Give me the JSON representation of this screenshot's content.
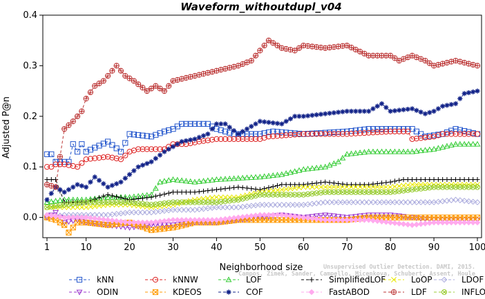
{
  "chart_data": {
    "type": "line",
    "title": "Waveform_withoutdupl_v04",
    "xlabel": "Neighborhood size",
    "ylabel": "Adjusted P@n",
    "xlim": [
      1,
      100
    ],
    "ylim": [
      -0.04,
      0.4
    ],
    "x_ticks": [
      "1",
      "10",
      "20",
      "30",
      "40",
      "50",
      "60",
      "70",
      "80",
      "90",
      "100"
    ],
    "y_ticks": [
      "0.0",
      "0.1",
      "0.2",
      "0.3",
      "0.4"
    ],
    "grid": false,
    "legend_position": "bottom",
    "credit": "Campos, Zimek, Sander, Campello, Micenkova, Schubert, Assent, Houle",
    "credit_line1": "Unsupervised Outlier Detection. DAMI, 2015.",
    "series": [
      {
        "name": "kNN",
        "color": "#2255cc",
        "marker": "square",
        "points": [
          [
            1,
            0.125
          ],
          [
            2,
            0.125
          ],
          [
            3,
            0.11
          ],
          [
            4,
            0.11
          ],
          [
            5,
            0.11
          ],
          [
            6,
            0.11
          ],
          [
            7,
            0.145
          ],
          [
            8,
            0.13
          ],
          [
            9,
            0.145
          ],
          [
            10,
            0.13
          ],
          [
            15,
            0.15
          ],
          [
            18,
            0.13
          ],
          [
            20,
            0.165
          ],
          [
            25,
            0.16
          ],
          [
            28,
            0.17
          ],
          [
            30,
            0.175
          ],
          [
            32,
            0.185
          ],
          [
            38,
            0.185
          ],
          [
            40,
            0.175
          ],
          [
            44,
            0.165
          ],
          [
            50,
            0.165
          ],
          [
            53,
            0.17
          ],
          [
            60,
            0.165
          ],
          [
            70,
            0.17
          ],
          [
            75,
            0.175
          ],
          [
            80,
            0.175
          ],
          [
            85,
            0.175
          ],
          [
            88,
            0.16
          ],
          [
            92,
            0.165
          ],
          [
            95,
            0.175
          ],
          [
            100,
            0.165
          ]
        ]
      },
      {
        "name": "kNNW",
        "color": "#dd2222",
        "marker": "circle",
        "points": [
          [
            1,
            0.1
          ],
          [
            2,
            0.1
          ],
          [
            3,
            0.105
          ],
          [
            5,
            0.105
          ],
          [
            8,
            0.1
          ],
          [
            10,
            0.115
          ],
          [
            15,
            0.12
          ],
          [
            18,
            0.115
          ],
          [
            20,
            0.13
          ],
          [
            22,
            0.135
          ],
          [
            28,
            0.135
          ],
          [
            30,
            0.145
          ],
          [
            33,
            0.145
          ],
          [
            36,
            0.15
          ],
          [
            40,
            0.155
          ],
          [
            50,
            0.155
          ],
          [
            52,
            0.16
          ],
          [
            60,
            0.165
          ],
          [
            70,
            0.165
          ],
          [
            80,
            0.17
          ],
          [
            84,
            0.17
          ],
          [
            85,
            0.155
          ],
          [
            90,
            0.16
          ],
          [
            92,
            0.165
          ],
          [
            100,
            0.165
          ]
        ]
      },
      {
        "name": "LOF",
        "color": "#33cc33",
        "marker": "triangle-up",
        "points": [
          [
            1,
            0.03
          ],
          [
            5,
            0.035
          ],
          [
            10,
            0.035
          ],
          [
            15,
            0.04
          ],
          [
            20,
            0.04
          ],
          [
            25,
            0.045
          ],
          [
            27,
            0.07
          ],
          [
            30,
            0.075
          ],
          [
            35,
            0.07
          ],
          [
            40,
            0.075
          ],
          [
            50,
            0.08
          ],
          [
            55,
            0.085
          ],
          [
            60,
            0.095
          ],
          [
            65,
            0.1
          ],
          [
            68,
            0.11
          ],
          [
            70,
            0.125
          ],
          [
            75,
            0.13
          ],
          [
            80,
            0.13
          ],
          [
            85,
            0.13
          ],
          [
            90,
            0.135
          ],
          [
            95,
            0.145
          ],
          [
            100,
            0.145
          ]
        ]
      },
      {
        "name": "SimplifiedLOF",
        "color": "#000000",
        "marker": "plus",
        "points": [
          [
            1,
            0.075
          ],
          [
            3,
            0.075
          ],
          [
            5,
            0.03
          ],
          [
            10,
            0.03
          ],
          [
            15,
            0.045
          ],
          [
            20,
            0.035
          ],
          [
            25,
            0.04
          ],
          [
            30,
            0.05
          ],
          [
            35,
            0.05
          ],
          [
            40,
            0.055
          ],
          [
            45,
            0.06
          ],
          [
            50,
            0.055
          ],
          [
            55,
            0.065
          ],
          [
            60,
            0.065
          ],
          [
            65,
            0.07
          ],
          [
            70,
            0.065
          ],
          [
            75,
            0.065
          ],
          [
            80,
            0.07
          ],
          [
            83,
            0.075
          ],
          [
            90,
            0.075
          ],
          [
            100,
            0.075
          ]
        ]
      },
      {
        "name": "LoOP",
        "color": "#e8e800",
        "marker": "cross",
        "points": [
          [
            1,
            0.02
          ],
          [
            5,
            0.02
          ],
          [
            10,
            0.02
          ],
          [
            15,
            0.025
          ],
          [
            20,
            0.025
          ],
          [
            25,
            0.02
          ],
          [
            30,
            0.025
          ],
          [
            35,
            0.035
          ],
          [
            40,
            0.04
          ],
          [
            45,
            0.04
          ],
          [
            50,
            0.05
          ],
          [
            55,
            0.055
          ],
          [
            60,
            0.06
          ],
          [
            65,
            0.06
          ],
          [
            70,
            0.06
          ],
          [
            75,
            0.06
          ],
          [
            80,
            0.06
          ],
          [
            85,
            0.065
          ],
          [
            90,
            0.065
          ],
          [
            100,
            0.065
          ]
        ]
      },
      {
        "name": "LDOF",
        "color": "#aaaadd",
        "marker": "diamond",
        "points": [
          [
            1,
            0.0
          ],
          [
            5,
            0.005
          ],
          [
            10,
            0.005
          ],
          [
            15,
            0.005
          ],
          [
            20,
            0.01
          ],
          [
            25,
            0.01
          ],
          [
            30,
            0.015
          ],
          [
            35,
            0.015
          ],
          [
            40,
            0.02
          ],
          [
            45,
            0.02
          ],
          [
            50,
            0.025
          ],
          [
            55,
            0.025
          ],
          [
            60,
            0.025
          ],
          [
            65,
            0.03
          ],
          [
            70,
            0.03
          ],
          [
            75,
            0.03
          ],
          [
            80,
            0.03
          ],
          [
            85,
            0.03
          ],
          [
            90,
            0.03
          ],
          [
            95,
            0.035
          ],
          [
            100,
            0.03
          ]
        ]
      },
      {
        "name": "ODIN",
        "color": "#9933cc",
        "marker": "triangle-down",
        "points": [
          [
            1,
            0.0
          ],
          [
            3,
            0.01
          ],
          [
            5,
            -0.01
          ],
          [
            8,
            -0.005
          ],
          [
            10,
            -0.01
          ],
          [
            15,
            -0.015
          ],
          [
            20,
            -0.02
          ],
          [
            25,
            -0.015
          ],
          [
            30,
            -0.015
          ],
          [
            35,
            -0.01
          ],
          [
            40,
            -0.01
          ],
          [
            45,
            -0.005
          ],
          [
            50,
            0.0
          ],
          [
            55,
            0.005
          ],
          [
            60,
            0.0
          ],
          [
            65,
            0.005
          ],
          [
            70,
            0.0
          ],
          [
            75,
            0.005
          ],
          [
            80,
            0.005
          ],
          [
            85,
            0.0
          ],
          [
            90,
            -0.005
          ],
          [
            95,
            -0.005
          ],
          [
            100,
            -0.005
          ]
        ]
      },
      {
        "name": "KDEOS",
        "color": "#ff9900",
        "marker": "square-x",
        "points": [
          [
            1,
            0.0
          ],
          [
            3,
            -0.005
          ],
          [
            5,
            -0.015
          ],
          [
            6,
            -0.03
          ],
          [
            8,
            -0.01
          ],
          [
            10,
            -0.01
          ],
          [
            15,
            -0.015
          ],
          [
            20,
            -0.01
          ],
          [
            25,
            -0.025
          ],
          [
            30,
            -0.02
          ],
          [
            35,
            -0.01
          ],
          [
            40,
            -0.01
          ],
          [
            45,
            -0.005
          ],
          [
            50,
            -0.005
          ],
          [
            55,
            -0.005
          ],
          [
            60,
            -0.005
          ],
          [
            65,
            -0.005
          ],
          [
            70,
            -0.005
          ],
          [
            75,
            0.0
          ],
          [
            80,
            0.0
          ],
          [
            85,
            0.0
          ],
          [
            90,
            0.0
          ],
          [
            95,
            0.0
          ],
          [
            100,
            0.0
          ]
        ]
      },
      {
        "name": "COF",
        "color": "#112288",
        "marker": "asterisk",
        "points": [
          [
            1,
            0.035
          ],
          [
            3,
            0.06
          ],
          [
            5,
            0.05
          ],
          [
            8,
            0.065
          ],
          [
            10,
            0.06
          ],
          [
            12,
            0.08
          ],
          [
            15,
            0.06
          ],
          [
            18,
            0.07
          ],
          [
            20,
            0.085
          ],
          [
            22,
            0.1
          ],
          [
            25,
            0.11
          ],
          [
            28,
            0.13
          ],
          [
            30,
            0.14
          ],
          [
            32,
            0.15
          ],
          [
            35,
            0.155
          ],
          [
            38,
            0.165
          ],
          [
            40,
            0.185
          ],
          [
            42,
            0.185
          ],
          [
            45,
            0.165
          ],
          [
            50,
            0.19
          ],
          [
            55,
            0.185
          ],
          [
            58,
            0.2
          ],
          [
            60,
            0.2
          ],
          [
            65,
            0.205
          ],
          [
            70,
            0.21
          ],
          [
            75,
            0.21
          ],
          [
            78,
            0.225
          ],
          [
            80,
            0.21
          ],
          [
            85,
            0.215
          ],
          [
            88,
            0.205
          ],
          [
            90,
            0.21
          ],
          [
            92,
            0.22
          ],
          [
            95,
            0.225
          ],
          [
            97,
            0.245
          ],
          [
            100,
            0.25
          ]
        ]
      },
      {
        "name": "FastABOD",
        "color": "#ffaaee",
        "marker": "diamond-filled",
        "points": [
          [
            1,
            0.005
          ],
          [
            5,
            0.0
          ],
          [
            10,
            0.0
          ],
          [
            15,
            -0.005
          ],
          [
            20,
            -0.01
          ],
          [
            25,
            -0.01
          ],
          [
            30,
            -0.005
          ],
          [
            35,
            -0.005
          ],
          [
            40,
            -0.005
          ],
          [
            45,
            0.0
          ],
          [
            50,
            0.005
          ],
          [
            55,
            0.005
          ],
          [
            60,
            0.0
          ],
          [
            65,
            -0.005
          ],
          [
            70,
            -0.005
          ],
          [
            75,
            -0.005
          ],
          [
            80,
            -0.01
          ],
          [
            85,
            -0.015
          ],
          [
            90,
            -0.01
          ],
          [
            95,
            -0.01
          ],
          [
            100,
            -0.01
          ]
        ]
      },
      {
        "name": "LDF",
        "color": "#bb3333",
        "marker": "circle-plus",
        "points": [
          [
            1,
            0.065
          ],
          [
            3,
            0.06
          ],
          [
            4,
            0.12
          ],
          [
            5,
            0.175
          ],
          [
            7,
            0.19
          ],
          [
            9,
            0.21
          ],
          [
            10,
            0.235
          ],
          [
            12,
            0.26
          ],
          [
            14,
            0.27
          ],
          [
            16,
            0.29
          ],
          [
            17,
            0.3
          ],
          [
            19,
            0.28
          ],
          [
            21,
            0.27
          ],
          [
            24,
            0.25
          ],
          [
            26,
            0.26
          ],
          [
            28,
            0.25
          ],
          [
            30,
            0.27
          ],
          [
            35,
            0.28
          ],
          [
            40,
            0.29
          ],
          [
            45,
            0.3
          ],
          [
            48,
            0.31
          ],
          [
            50,
            0.33
          ],
          [
            52,
            0.35
          ],
          [
            55,
            0.335
          ],
          [
            58,
            0.33
          ],
          [
            60,
            0.34
          ],
          [
            65,
            0.335
          ],
          [
            70,
            0.34
          ],
          [
            75,
            0.32
          ],
          [
            80,
            0.32
          ],
          [
            82,
            0.31
          ],
          [
            85,
            0.32
          ],
          [
            88,
            0.31
          ],
          [
            90,
            0.3
          ],
          [
            95,
            0.31
          ],
          [
            100,
            0.3
          ]
        ]
      },
      {
        "name": "INFLO",
        "color": "#99cc33",
        "marker": "circle-x",
        "points": [
          [
            1,
            0.02
          ],
          [
            5,
            0.025
          ],
          [
            10,
            0.03
          ],
          [
            15,
            0.03
          ],
          [
            20,
            0.03
          ],
          [
            25,
            0.025
          ],
          [
            30,
            0.03
          ],
          [
            35,
            0.03
          ],
          [
            40,
            0.03
          ],
          [
            45,
            0.035
          ],
          [
            50,
            0.045
          ],
          [
            55,
            0.045
          ],
          [
            60,
            0.045
          ],
          [
            65,
            0.05
          ],
          [
            70,
            0.05
          ],
          [
            75,
            0.05
          ],
          [
            80,
            0.05
          ],
          [
            85,
            0.055
          ],
          [
            90,
            0.06
          ],
          [
            95,
            0.06
          ],
          [
            100,
            0.06
          ]
        ]
      }
    ]
  }
}
